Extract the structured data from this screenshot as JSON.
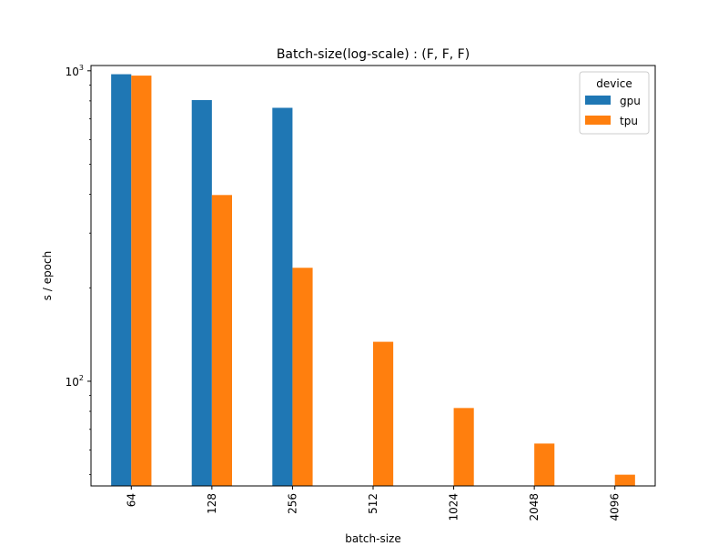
{
  "chart_data": {
    "type": "bar",
    "title": "Batch-size(log-scale) : (F, F, F)",
    "xlabel": "batch-size",
    "ylabel": "s / epoch",
    "yscale": "log",
    "ylim": [
      46,
      1040
    ],
    "yticks": [
      {
        "value": 100,
        "base": "10",
        "exp": "2"
      },
      {
        "value": 1000,
        "base": "10",
        "exp": "3"
      }
    ],
    "categories": [
      "64",
      "128",
      "256",
      "512",
      "1024",
      "2048",
      "4096"
    ],
    "series": [
      {
        "name": "gpu",
        "color": "#1f77b4",
        "values": [
          975,
          805,
          760,
          null,
          null,
          null,
          null
        ]
      },
      {
        "name": "tpu",
        "color": "#ff7f0e",
        "values": [
          965,
          398,
          232,
          134,
          82,
          63,
          50
        ]
      }
    ],
    "legend": {
      "title": "device",
      "position": "top-right"
    },
    "grid": false
  }
}
